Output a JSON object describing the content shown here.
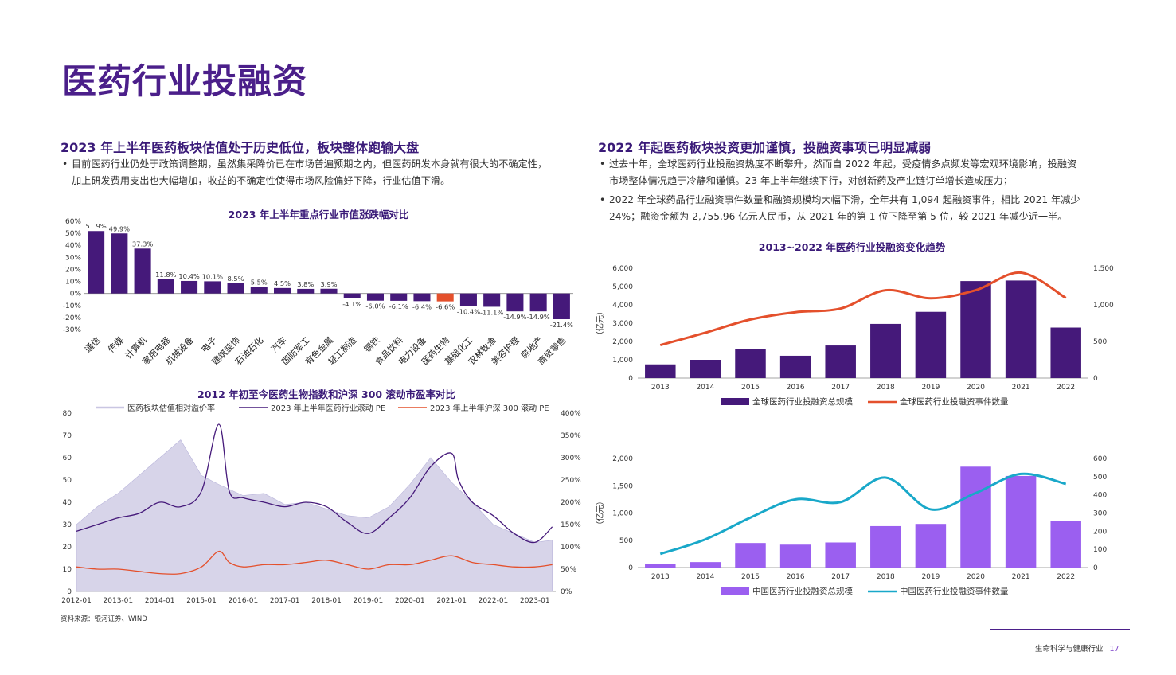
{
  "page": {
    "title": "医药行业投融资",
    "source": "资料来源：银河证券、WIND",
    "footer_text": "生命科学与健康行业",
    "page_number": "17"
  },
  "left": {
    "heading": "2023 年上半年医药板块估值处于历史低位，板块整体跑输大盘",
    "bullets": [
      "目前医药行业仍处于政策调整期，虽然集采降价已在市场普遍预期之内，但医药研发本身就有很大的不确定性，",
      "加上研发费用支出也大幅增加，收益的不确定性使得市场风险偏好下降，行业估值下滑。"
    ]
  },
  "right": {
    "heading": "2022 年起医药板块投资更加谨慎，投融资事项已明显减弱",
    "bullet1": [
      "过去十年，全球医药行业投融资热度不断攀升，然而自 2022 年起，受疫情多点频发等宏观环境影响，投融资",
      "市场整体情况趋于冷静和谨慎。23 年上半年继续下行，对创新药及产业链订单增长造成压力；"
    ],
    "bullet2": [
      "2022 年全球药品行业融资事件数量和融资规模均大幅下滑，全年共有 1,094 起融资事件，相比 2021 年减少",
      "24%；融资金额为 2,755.96 亿元人民币，从 2021 年的第 1 位下降至第 5 位，较 2021 年减少近一半。"
    ]
  },
  "colors": {
    "purple": "#45197a",
    "highlight": "#e4502c",
    "light_purple": "#9b5ff0",
    "teal": "#19a8c9",
    "red_line": "#e4502c",
    "band": "#c9c6e2"
  },
  "chart_data": [
    {
      "id": "industry-change",
      "type": "bar",
      "title": "2023 年上半年重点行业市值涨跌幅对比",
      "categories": [
        "通信",
        "传媒",
        "计算机",
        "家用电器",
        "机械设备",
        "电子",
        "建筑装饰",
        "石油石化",
        "汽车",
        "国防军工",
        "有色金属",
        "轻工制造",
        "钢铁",
        "食品饮料",
        "电力设备",
        "医药生物",
        "基础化工",
        "农林牧渔",
        "美容护理",
        "房地产",
        "商贸零售"
      ],
      "values": [
        51.9,
        49.9,
        37.3,
        11.8,
        10.4,
        10.1,
        8.5,
        5.5,
        4.5,
        3.8,
        3.9,
        -4.1,
        -6.0,
        -6.1,
        -6.4,
        -6.6,
        -10.4,
        -11.1,
        -14.9,
        -14.9,
        -21.4
      ],
      "value_labels": [
        "51.9%",
        "49.9%",
        "37.3%",
        "11.8%",
        "10.4%",
        "10.1%",
        "8.5%",
        "5.5%",
        "4.5%",
        "3.8%",
        "3.9%",
        "-4.1%",
        "-6.0%",
        "-6.1%",
        "-6.4%",
        "-6.6%",
        "-10.4%",
        "-11.1%",
        "-14.9%",
        "-14.9%",
        "-21.4%"
      ],
      "highlight": "医药生物",
      "ylim": [
        -30,
        60
      ],
      "yticks": [
        "-30%",
        "-20%",
        "-10%",
        "0%",
        "10%",
        "20%",
        "30%",
        "40%",
        "50%",
        "60%"
      ]
    },
    {
      "id": "pe-ratio",
      "type": "line",
      "title": "2012 年初至今医药生物指数和沪深 300 滚动市盈率对比",
      "series": [
        {
          "name": "医药板块估值相对溢价率",
          "axis": "right",
          "kind": "band",
          "x": [
            "2012-01",
            "2012-07",
            "2013-01",
            "2013-07",
            "2014-01",
            "2014-07",
            "2015-01",
            "2015-06",
            "2016-01",
            "2016-07",
            "2017-01",
            "2017-07",
            "2018-01",
            "2018-07",
            "2019-01",
            "2019-07",
            "2020-01",
            "2020-07",
            "2021-01",
            "2021-07",
            "2022-01",
            "2022-07",
            "2023-01",
            "2023-06"
          ],
          "values": [
            150,
            190,
            220,
            260,
            300,
            340,
            260,
            240,
            215,
            220,
            195,
            200,
            185,
            170,
            165,
            190,
            240,
            300,
            245,
            200,
            150,
            130,
            110,
            115
          ]
        },
        {
          "name": "2023 年上半年医药行业滚动 PE",
          "axis": "left",
          "x": [
            "2012-01",
            "2012-07",
            "2013-01",
            "2013-07",
            "2014-01",
            "2014-07",
            "2015-01",
            "2015-06",
            "2015-09",
            "2016-01",
            "2016-07",
            "2017-01",
            "2017-07",
            "2018-01",
            "2018-07",
            "2019-01",
            "2019-07",
            "2020-01",
            "2020-07",
            "2021-01",
            "2021-03",
            "2021-07",
            "2022-01",
            "2022-07",
            "2023-01",
            "2023-06"
          ],
          "values": [
            27,
            30,
            33,
            35,
            40,
            38,
            45,
            75,
            45,
            42,
            40,
            38,
            40,
            38,
            31,
            26,
            33,
            42,
            56,
            62,
            50,
            40,
            34,
            26,
            22,
            29
          ]
        },
        {
          "name": "2023 年上半年沪深 300 滚动 PE",
          "axis": "left",
          "x": [
            "2012-01",
            "2012-07",
            "2013-01",
            "2013-07",
            "2014-01",
            "2014-07",
            "2015-01",
            "2015-06",
            "2015-09",
            "2016-01",
            "2016-07",
            "2017-01",
            "2017-07",
            "2018-01",
            "2018-07",
            "2019-01",
            "2019-07",
            "2020-01",
            "2020-07",
            "2021-01",
            "2021-07",
            "2022-01",
            "2022-07",
            "2023-01",
            "2023-06"
          ],
          "values": [
            11,
            10,
            10,
            9,
            8,
            8,
            11,
            18,
            13,
            11,
            12,
            12,
            13,
            14,
            12,
            10,
            12,
            12,
            14,
            16,
            13,
            12,
            11,
            11,
            12
          ]
        }
      ],
      "x_ticks": [
        "2012-01",
        "2013-01",
        "2014-01",
        "2015-01",
        "2016-01",
        "2017-01",
        "2018-01",
        "2019-01",
        "2020-01",
        "2021-01",
        "2022-01",
        "2023-01"
      ],
      "ylim_left": [
        0,
        80
      ],
      "yticks_left": [
        "0",
        "10",
        "20",
        "30",
        "40",
        "50",
        "60",
        "70",
        "80"
      ],
      "ylim_right": [
        0,
        400
      ],
      "yticks_right": [
        "0%",
        "50%",
        "100%",
        "150%",
        "200%",
        "250%",
        "300%",
        "350%",
        "400%"
      ]
    },
    {
      "id": "global-financing",
      "type": "bar",
      "title": "2013~2022 年医药行业投融资变化趋势",
      "categories": [
        "2013",
        "2014",
        "2015",
        "2016",
        "2017",
        "2018",
        "2019",
        "2020",
        "2021",
        "2022"
      ],
      "ylabel": "（亿元）",
      "series": [
        {
          "name": "全球医药行业投融资总规模",
          "kind": "bar",
          "axis": "left",
          "values": [
            750,
            1000,
            1600,
            1220,
            1780,
            2960,
            3620,
            5300,
            5330,
            2760
          ]
        },
        {
          "name": "全球医药行业投融资事件数量",
          "kind": "line",
          "axis": "right",
          "values": [
            450,
            620,
            800,
            900,
            950,
            1200,
            1090,
            1200,
            1440,
            1094
          ]
        }
      ],
      "ylim_left": [
        0,
        6000
      ],
      "yticks_left": [
        "0",
        "1,000",
        "2,000",
        "3,000",
        "4,000",
        "5,000",
        "6,000"
      ],
      "ylim_right": [
        0,
        1500
      ],
      "yticks_right": [
        "0",
        "500",
        "1,000",
        "1,500"
      ]
    },
    {
      "id": "china-financing",
      "type": "bar",
      "categories": [
        "2013",
        "2014",
        "2015",
        "2016",
        "2017",
        "2018",
        "2019",
        "2020",
        "2021",
        "2022"
      ],
      "ylabel": "（亿元）",
      "series": [
        {
          "name": "中国医药行业投融资总规模",
          "kind": "bar",
          "axis": "left",
          "values": [
            70,
            100,
            450,
            420,
            460,
            760,
            800,
            1850,
            1680,
            850
          ]
        },
        {
          "name": "中国医药行业投融资事件数量",
          "kind": "line",
          "axis": "right",
          "values": [
            75,
            155,
            275,
            375,
            360,
            495,
            320,
            410,
            515,
            460
          ]
        }
      ],
      "ylim_left": [
        0,
        2000
      ],
      "yticks_left": [
        "0",
        "500",
        "1,000",
        "1,500",
        "2,000"
      ],
      "ylim_right": [
        0,
        600
      ],
      "yticks_right": [
        "0",
        "100",
        "200",
        "300",
        "400",
        "500",
        "600"
      ]
    }
  ]
}
